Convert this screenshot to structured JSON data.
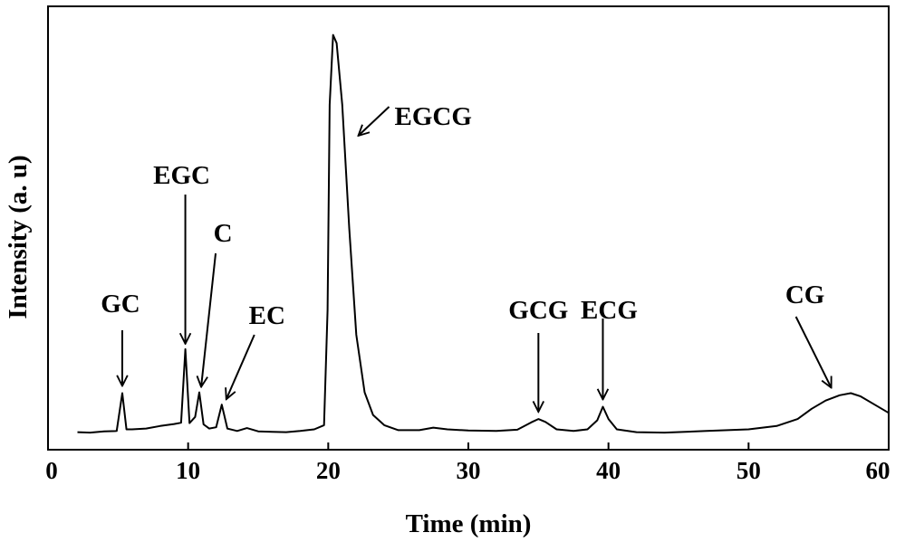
{
  "chart_data": {
    "type": "line",
    "title": "",
    "xlabel": "Time (min)",
    "ylabel": "Intensity (a. u)",
    "xlim": [
      0,
      60
    ],
    "ylim": [
      0,
      100
    ],
    "xticks": [
      0,
      10,
      20,
      30,
      40,
      50,
      60
    ],
    "grid": false,
    "legend": "none",
    "line_color": "#000000",
    "series": [
      {
        "values": [
          [
            2.1,
            0.3
          ],
          [
            3.0,
            0.2
          ],
          [
            4.0,
            0.5
          ],
          [
            4.9,
            0.6
          ],
          [
            5.3,
            9.8
          ],
          [
            5.6,
            1.0
          ],
          [
            6.0,
            1.0
          ],
          [
            7.0,
            1.2
          ],
          [
            8.0,
            1.8
          ],
          [
            9.0,
            2.3
          ],
          [
            9.5,
            2.6
          ],
          [
            9.8,
            20.5
          ],
          [
            10.1,
            2.5
          ],
          [
            10.5,
            4.0
          ],
          [
            10.8,
            10.0
          ],
          [
            11.1,
            2.2
          ],
          [
            11.5,
            1.2
          ],
          [
            12.0,
            1.5
          ],
          [
            12.4,
            7.0
          ],
          [
            12.8,
            1.2
          ],
          [
            13.5,
            0.6
          ],
          [
            14.2,
            1.3
          ],
          [
            15.0,
            0.5
          ],
          [
            16.0,
            0.4
          ],
          [
            17.0,
            0.3
          ],
          [
            18.0,
            0.6
          ],
          [
            19.0,
            1.0
          ],
          [
            19.7,
            2.0
          ],
          [
            19.95,
            30.0
          ],
          [
            20.1,
            80.0
          ],
          [
            20.35,
            97.0
          ],
          [
            20.6,
            95.0
          ],
          [
            21.0,
            80.0
          ],
          [
            21.5,
            50.0
          ],
          [
            22.0,
            24.0
          ],
          [
            22.6,
            10.0
          ],
          [
            23.2,
            4.5
          ],
          [
            24.0,
            2.0
          ],
          [
            25.0,
            0.8
          ],
          [
            26.5,
            0.8
          ],
          [
            27.5,
            1.4
          ],
          [
            28.5,
            1.0
          ],
          [
            30.0,
            0.7
          ],
          [
            32.0,
            0.6
          ],
          [
            33.5,
            0.9
          ],
          [
            34.5,
            2.7
          ],
          [
            35.0,
            3.5
          ],
          [
            35.5,
            2.8
          ],
          [
            36.3,
            1.0
          ],
          [
            37.5,
            0.6
          ],
          [
            38.5,
            1.0
          ],
          [
            39.2,
            3.2
          ],
          [
            39.6,
            6.5
          ],
          [
            40.0,
            3.5
          ],
          [
            40.6,
            1.0
          ],
          [
            42.0,
            0.3
          ],
          [
            44.0,
            0.2
          ],
          [
            47.0,
            0.6
          ],
          [
            50.0,
            1.0
          ],
          [
            52.0,
            1.8
          ],
          [
            53.5,
            3.5
          ],
          [
            54.5,
            6.0
          ],
          [
            55.5,
            8.0
          ],
          [
            56.5,
            9.3
          ],
          [
            57.3,
            9.8
          ],
          [
            58.0,
            9.0
          ],
          [
            59.0,
            7.0
          ],
          [
            60.0,
            5.0
          ]
        ]
      }
    ],
    "annotations": [
      {
        "label": "GC",
        "peak_x": 5.3,
        "peak_y": 9.8
      },
      {
        "label": "EGC",
        "peak_x": 9.8,
        "peak_y": 20.5
      },
      {
        "label": "C",
        "peak_x": 10.8,
        "peak_y": 10.0
      },
      {
        "label": "EC",
        "peak_x": 12.4,
        "peak_y": 7.0
      },
      {
        "label": "EGCG",
        "peak_x": 20.4,
        "peak_y": 97.0
      },
      {
        "label": "GCG",
        "peak_x": 35.0,
        "peak_y": 3.5
      },
      {
        "label": "ECG",
        "peak_x": 39.6,
        "peak_y": 6.5
      },
      {
        "label": "CG",
        "peak_x": 57.0,
        "peak_y": 9.8
      }
    ]
  }
}
